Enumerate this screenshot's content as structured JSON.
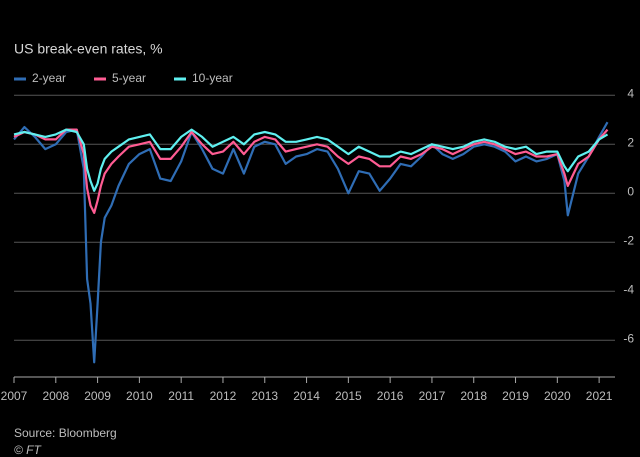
{
  "chart_data": {
    "type": "line",
    "title": "US break-even rates, %",
    "source": "Source: Bloomberg",
    "credit": "© FT",
    "x": [
      2007,
      2007.25,
      2007.5,
      2007.75,
      2008,
      2008.25,
      2008.5,
      2008.67,
      2008.75,
      2008.83,
      2008.92,
      2009,
      2009.08,
      2009.17,
      2009.33,
      2009.5,
      2009.75,
      2010,
      2010.25,
      2010.5,
      2010.75,
      2011,
      2011.25,
      2011.5,
      2011.75,
      2012,
      2012.25,
      2012.5,
      2012.75,
      2013,
      2013.25,
      2013.5,
      2013.75,
      2014,
      2014.25,
      2014.5,
      2014.75,
      2015,
      2015.25,
      2015.5,
      2015.75,
      2016,
      2016.25,
      2016.5,
      2016.75,
      2017,
      2017.25,
      2017.5,
      2017.75,
      2018,
      2018.25,
      2018.5,
      2018.75,
      2019,
      2019.25,
      2019.5,
      2019.75,
      2020,
      2020.17,
      2020.25,
      2020.5,
      2020.75,
      2021,
      2021.2
    ],
    "series": [
      {
        "name": "2-year",
        "color": "#2f6db5",
        "values": [
          2.2,
          2.7,
          2.3,
          1.8,
          2.0,
          2.5,
          2.6,
          1.0,
          -3.5,
          -4.5,
          -6.9,
          -4.5,
          -2.0,
          -1.0,
          -0.5,
          0.3,
          1.2,
          1.6,
          1.8,
          0.6,
          0.5,
          1.3,
          2.5,
          1.8,
          1.0,
          0.8,
          1.8,
          0.8,
          1.9,
          2.1,
          2.0,
          1.2,
          1.5,
          1.6,
          1.8,
          1.7,
          1.0,
          0.0,
          0.9,
          0.8,
          0.1,
          0.6,
          1.2,
          1.1,
          1.5,
          2.0,
          1.6,
          1.4,
          1.6,
          1.9,
          2.0,
          1.9,
          1.7,
          1.3,
          1.5,
          1.3,
          1.4,
          1.6,
          0.5,
          -0.9,
          0.8,
          1.5,
          2.3,
          2.9
        ]
      },
      {
        "name": "5-year",
        "color": "#ff5c93",
        "values": [
          2.3,
          2.5,
          2.4,
          2.2,
          2.2,
          2.6,
          2.6,
          1.6,
          0.2,
          -0.5,
          -0.8,
          -0.3,
          0.3,
          0.8,
          1.2,
          1.5,
          1.9,
          2.0,
          2.1,
          1.4,
          1.4,
          1.9,
          2.5,
          2.0,
          1.6,
          1.7,
          2.1,
          1.6,
          2.1,
          2.3,
          2.2,
          1.7,
          1.8,
          1.9,
          2.0,
          1.9,
          1.5,
          1.2,
          1.5,
          1.4,
          1.1,
          1.1,
          1.5,
          1.4,
          1.6,
          1.9,
          1.8,
          1.6,
          1.8,
          2.0,
          2.1,
          2.0,
          1.8,
          1.6,
          1.7,
          1.5,
          1.5,
          1.6,
          0.8,
          0.3,
          1.2,
          1.5,
          2.2,
          2.6
        ]
      },
      {
        "name": "10-year",
        "color": "#5ff0f0",
        "values": [
          2.4,
          2.5,
          2.4,
          2.3,
          2.4,
          2.6,
          2.5,
          2.0,
          1.0,
          0.5,
          0.1,
          0.4,
          1.0,
          1.4,
          1.7,
          1.9,
          2.2,
          2.3,
          2.4,
          1.8,
          1.8,
          2.3,
          2.6,
          2.3,
          1.9,
          2.1,
          2.3,
          2.0,
          2.4,
          2.5,
          2.4,
          2.1,
          2.1,
          2.2,
          2.3,
          2.2,
          1.9,
          1.6,
          1.9,
          1.7,
          1.5,
          1.5,
          1.7,
          1.6,
          1.8,
          2.0,
          1.9,
          1.8,
          1.9,
          2.1,
          2.2,
          2.1,
          1.9,
          1.8,
          1.9,
          1.6,
          1.7,
          1.7,
          1.1,
          0.9,
          1.5,
          1.7,
          2.2,
          2.4
        ]
      }
    ],
    "xlim": [
      2007,
      2021.38
    ],
    "xticks": [
      2007,
      2008,
      2009,
      2010,
      2011,
      2012,
      2013,
      2014,
      2015,
      2016,
      2017,
      2018,
      2019,
      2020,
      2021
    ],
    "ylim": [
      -7.5,
      4
    ],
    "yticks": [
      -6,
      -4,
      -2,
      0,
      2,
      4
    ],
    "grid": true
  }
}
